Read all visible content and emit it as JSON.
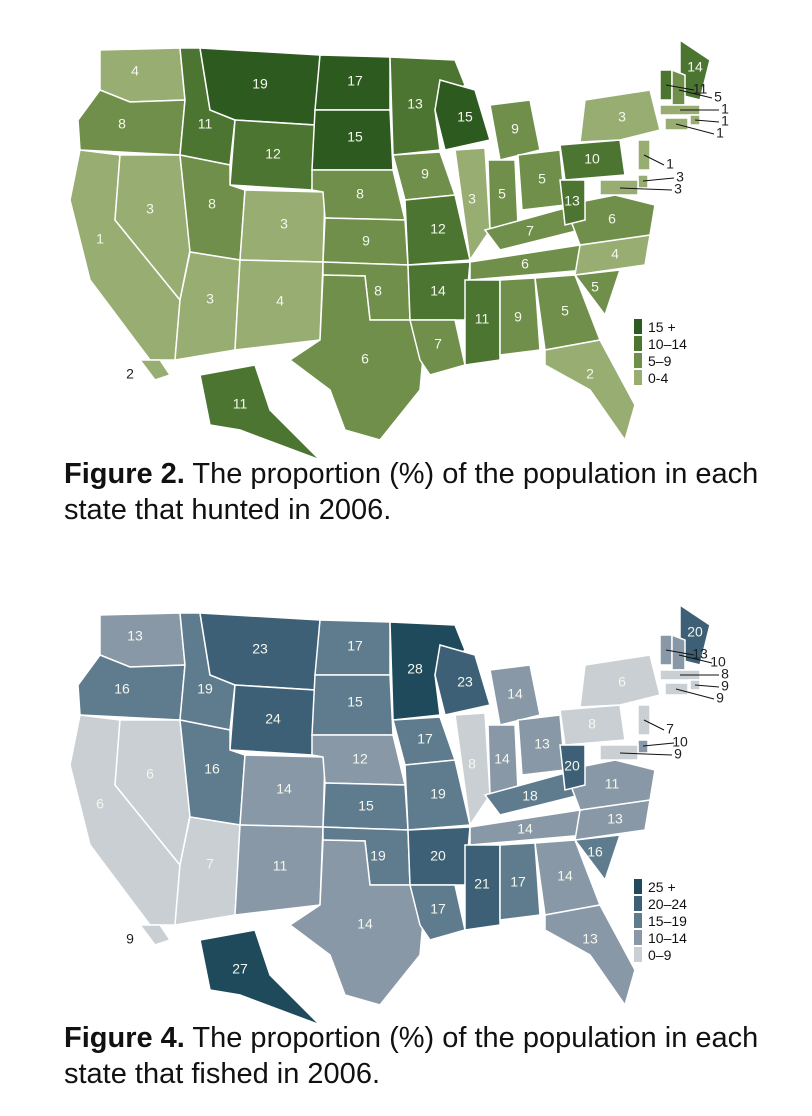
{
  "figures": [
    {
      "id": "hunting",
      "caption_label": "Figure 2.",
      "caption_text": "The proportion (%) of the population in each state that hunted in 2006.",
      "legend": [
        {
          "label": "15 +",
          "color": "#2d5a1f"
        },
        {
          "label": "10–14",
          "color": "#4d7532"
        },
        {
          "label": "5–9",
          "color": "#6f8f4a"
        },
        {
          "label": "0-4",
          "color": "#98ad72"
        }
      ],
      "states": {
        "WA": "4",
        "OR": "8",
        "CA": "1",
        "NV": "3",
        "ID": "11",
        "MT": "19",
        "WY": "12",
        "UT": "8",
        "AZ": "3",
        "CO": "3",
        "NM": "4",
        "ND": "17",
        "SD": "15",
        "NE": "8",
        "KS": "9",
        "OK": "8",
        "TX": "6",
        "MN": "13",
        "IA": "9",
        "MO": "12",
        "AR": "14",
        "LA": "7",
        "WI": "15",
        "IL": "3",
        "MI": "9",
        "IN": "5",
        "OH": "5",
        "KY": "7",
        "TN": "6",
        "MS": "11",
        "AL": "9",
        "GA": "5",
        "FL": "2",
        "SC": "5",
        "NC": "4",
        "VA": "6",
        "WV": "13",
        "PA": "10",
        "NY": "3",
        "ME": "14",
        "VT": "11",
        "NH": "5",
        "MA": "1",
        "RI": "1",
        "CT": "1",
        "NJ": "1",
        "DE": "3",
        "MD": "3",
        "AK": "11",
        "HI": "2"
      }
    },
    {
      "id": "fishing",
      "caption_label": "Figure 4.",
      "caption_text": "The proportion (%) of the population in each state that fished in 2006.",
      "legend": [
        {
          "label": "25 +",
          "color": "#1f4a5c"
        },
        {
          "label": "20–24",
          "color": "#3e6076"
        },
        {
          "label": "15–19",
          "color": "#5f7b8e"
        },
        {
          "label": "10–14",
          "color": "#8898a6"
        },
        {
          "label": "0–9",
          "color": "#c9cfd3"
        }
      ],
      "states": {
        "WA": "13",
        "OR": "16",
        "CA": "6",
        "NV": "6",
        "ID": "19",
        "MT": "23",
        "WY": "24",
        "UT": "16",
        "AZ": "7",
        "CO": "14",
        "NM": "11",
        "ND": "17",
        "SD": "15",
        "NE": "12",
        "KS": "15",
        "OK": "19",
        "TX": "14",
        "MN": "28",
        "IA": "17",
        "MO": "19",
        "AR": "20",
        "LA": "17",
        "WI": "23",
        "IL": "8",
        "MI": "14",
        "IN": "14",
        "OH": "13",
        "KY": "18",
        "TN": "14",
        "MS": "21",
        "AL": "17",
        "GA": "14",
        "FL": "13",
        "SC": "16",
        "NC": "13",
        "VA": "11",
        "WV": "20",
        "PA": "8",
        "NY": "6",
        "ME": "20",
        "VT": "13",
        "NH": "10",
        "MA": "8",
        "RI": "9",
        "CT": "9",
        "NJ": "7",
        "DE": "10",
        "MD": "9",
        "AK": "27",
        "HI": "9"
      }
    }
  ]
}
